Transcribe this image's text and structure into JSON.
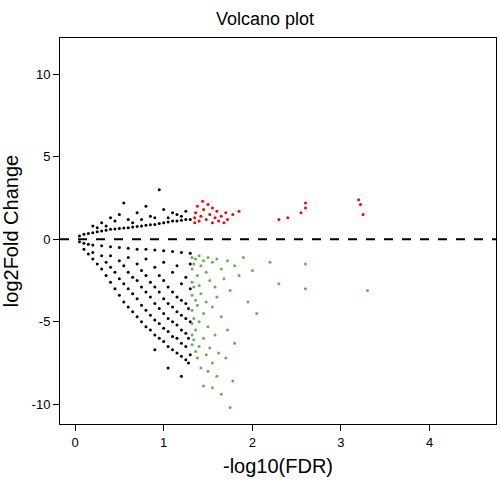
{
  "chart_data": {
    "type": "scatter",
    "title": "Volcano plot",
    "x_label": "-log10(FDR)",
    "y_label": "log2Fold Change",
    "xlim": [
      -0.17,
      4.75
    ],
    "ylim": [
      -11.2,
      12.2
    ],
    "xticks": [
      0,
      1,
      2,
      3,
      4
    ],
    "yticks": [
      -10,
      -5,
      0,
      5,
      10
    ],
    "grid": false,
    "marker": "dot",
    "hline": {
      "value": 0,
      "line_style": "dashed"
    },
    "series": [
      {
        "color": "#000000",
        "x": [
          0.05,
          0.1,
          0.15,
          0.2,
          0.25,
          0.3,
          0.35,
          0.4,
          0.45,
          0.5,
          0.55,
          0.6,
          0.65,
          0.7,
          0.75,
          0.8,
          0.85,
          0.9,
          0.95,
          1.0,
          1.05,
          1.1,
          1.15,
          1.2,
          1.25,
          1.3,
          0.2,
          0.3,
          0.4,
          0.5,
          0.55,
          0.6,
          0.7,
          0.8,
          0.85,
          0.95,
          1.0,
          1.05,
          1.1,
          1.2,
          1.25,
          0.45,
          0.65,
          0.75,
          0.9,
          1.15,
          0.35,
          0.25,
          0.05,
          0.1,
          0.15,
          0.2,
          0.3,
          0.4,
          0.5,
          0.6,
          0.7,
          0.8,
          0.9,
          1.0,
          1.1,
          1.2,
          1.3,
          0.1,
          0.15,
          0.2,
          0.2,
          0.25,
          0.3,
          0.3,
          0.35,
          0.35,
          0.4,
          0.4,
          0.4,
          0.45,
          0.45,
          0.5,
          0.5,
          0.5,
          0.55,
          0.55,
          0.55,
          0.6,
          0.6,
          0.6,
          0.6,
          0.65,
          0.65,
          0.65,
          0.7,
          0.7,
          0.7,
          0.7,
          0.75,
          0.75,
          0.75,
          0.75,
          0.8,
          0.8,
          0.8,
          0.8,
          0.8,
          0.85,
          0.85,
          0.85,
          0.85,
          0.9,
          0.9,
          0.9,
          0.9,
          0.9,
          0.9,
          0.95,
          0.95,
          0.95,
          0.95,
          0.95,
          1.0,
          1.0,
          1.0,
          1.0,
          1.0,
          1.0,
          1.05,
          1.05,
          1.05,
          1.05,
          1.05,
          1.05,
          1.1,
          1.1,
          1.1,
          1.1,
          1.1,
          1.1,
          1.15,
          1.15,
          1.15,
          1.15,
          1.15,
          1.15,
          1.2,
          1.2,
          1.2,
          1.2,
          1.2,
          1.2,
          1.2,
          1.25,
          1.25,
          1.25,
          1.25,
          1.25,
          1.25,
          1.28,
          1.28,
          1.28,
          1.3,
          1.3,
          1.3,
          1.3
        ],
        "values": [
          0.2,
          0.3,
          0.35,
          0.4,
          0.45,
          0.5,
          0.55,
          0.6,
          0.62,
          0.65,
          0.68,
          0.7,
          0.75,
          0.78,
          0.8,
          0.85,
          0.88,
          0.9,
          0.95,
          1.0,
          1.05,
          1.1,
          1.1,
          1.15,
          1.2,
          1.2,
          0.8,
          1.0,
          1.3,
          1.5,
          2.2,
          1.2,
          1.6,
          2.0,
          1.4,
          3.0,
          1.8,
          1.3,
          1.6,
          1.4,
          1.7,
          1.1,
          1.0,
          1.2,
          1.3,
          1.5,
          0.8,
          0.7,
          -0.15,
          -0.25,
          -0.3,
          -0.35,
          -0.4,
          -0.45,
          -0.5,
          -0.55,
          -0.6,
          -0.6,
          -0.65,
          -0.7,
          -0.75,
          -0.8,
          -0.85,
          -0.6,
          -0.9,
          -1.2,
          -0.8,
          -1.5,
          -1.0,
          -1.8,
          -2.2,
          -1.4,
          -2.6,
          -1.7,
          -1.0,
          -3.0,
          -2.0,
          -3.4,
          -2.4,
          -1.3,
          -3.8,
          -2.7,
          -1.6,
          -4.1,
          -3.0,
          -2.0,
          -1.1,
          -4.4,
          -3.3,
          -2.3,
          -4.7,
          -3.6,
          -2.5,
          -1.5,
          -5.0,
          -4.0,
          -2.9,
          -1.9,
          -5.3,
          -4.3,
          -3.2,
          -2.2,
          -1.2,
          -5.5,
          -4.6,
          -3.5,
          -2.6,
          -5.8,
          -4.9,
          -3.9,
          -2.9,
          -1.7,
          -6.7,
          -6.0,
          -5.1,
          -4.2,
          -3.2,
          -2.2,
          -6.2,
          -5.4,
          -4.5,
          -3.6,
          -2.5,
          -1.4,
          -6.5,
          -5.6,
          -4.8,
          -3.9,
          -2.9,
          -7.8,
          -6.7,
          -5.9,
          -5.0,
          -4.1,
          -3.2,
          -2.0,
          -6.9,
          -6.0,
          -5.2,
          -4.4,
          -3.5,
          -1.6,
          -7.1,
          -6.3,
          -5.5,
          -4.6,
          -3.7,
          -2.7,
          -8.3,
          -7.3,
          -6.5,
          -5.7,
          -4.8,
          -3.9,
          -2.3,
          -7.5,
          -6.0,
          -4.2,
          -7.0,
          -5.0,
          -3.0,
          -1.5
        ]
      },
      {
        "color": "#ff0000",
        "x": [
          1.35,
          1.35,
          1.36,
          1.38,
          1.4,
          1.42,
          1.45,
          1.48,
          1.5,
          1.52,
          1.55,
          1.58,
          1.6,
          1.62,
          1.65,
          1.7,
          1.72,
          1.78,
          1.85,
          2.3,
          2.4,
          2.55,
          2.6,
          2.6,
          3.2,
          3.22,
          3.25,
          1.44,
          1.55,
          1.68
        ],
        "values": [
          1.0,
          1.3,
          1.6,
          2.0,
          1.1,
          1.4,
          1.8,
          1.2,
          2.1,
          1.5,
          1.0,
          1.3,
          1.7,
          1.1,
          1.4,
          1.6,
          1.2,
          1.5,
          1.7,
          1.2,
          1.3,
          1.6,
          1.9,
          2.2,
          2.4,
          2.1,
          1.5,
          2.3,
          1.9,
          1.0
        ]
      },
      {
        "color": "#6ab04c",
        "x": [
          1.32,
          1.32,
          1.32,
          1.32,
          1.32,
          1.32,
          1.32,
          1.32,
          1.34,
          1.34,
          1.34,
          1.34,
          1.36,
          1.36,
          1.36,
          1.36,
          1.38,
          1.38,
          1.38,
          1.4,
          1.4,
          1.4,
          1.4,
          1.42,
          1.42,
          1.42,
          1.45,
          1.45,
          1.45,
          1.48,
          1.48,
          1.48,
          1.5,
          1.5,
          1.5,
          1.52,
          1.52,
          1.55,
          1.55,
          1.55,
          1.58,
          1.58,
          1.6,
          1.6,
          1.6,
          1.62,
          1.65,
          1.65,
          1.68,
          1.7,
          1.72,
          1.72,
          1.75,
          1.78,
          1.8,
          1.8,
          1.85,
          1.9,
          1.95,
          2.0,
          2.05,
          2.2,
          2.3,
          2.6,
          2.6,
          3.3,
          1.75,
          1.65,
          1.45,
          1.55
        ],
        "values": [
          -1.1,
          -1.8,
          -2.6,
          -3.4,
          -4.3,
          -5.1,
          -5.8,
          -6.4,
          -1.5,
          -2.9,
          -4.8,
          -6.1,
          -1.2,
          -3.7,
          -5.5,
          -6.8,
          -2.2,
          -4.0,
          -7.2,
          -1.0,
          -2.8,
          -5.0,
          -6.5,
          -1.6,
          -3.3,
          -7.8,
          -1.3,
          -4.5,
          -6.0,
          -2.0,
          -3.8,
          -7.0,
          -1.1,
          -5.3,
          -8.0,
          -2.5,
          -6.6,
          -1.4,
          -4.1,
          -7.5,
          -2.9,
          -5.8,
          -1.2,
          -3.5,
          -8.3,
          -6.9,
          -1.8,
          -4.7,
          -2.4,
          -7.2,
          -1.3,
          -5.5,
          -3.1,
          -8.6,
          -1.6,
          -6.3,
          -2.2,
          -1.1,
          -3.8,
          -1.9,
          -4.5,
          -1.4,
          -2.7,
          -1.5,
          -3.0,
          -3.1,
          -10.2,
          -9.4,
          -8.9,
          -9.0
        ]
      }
    ]
  }
}
